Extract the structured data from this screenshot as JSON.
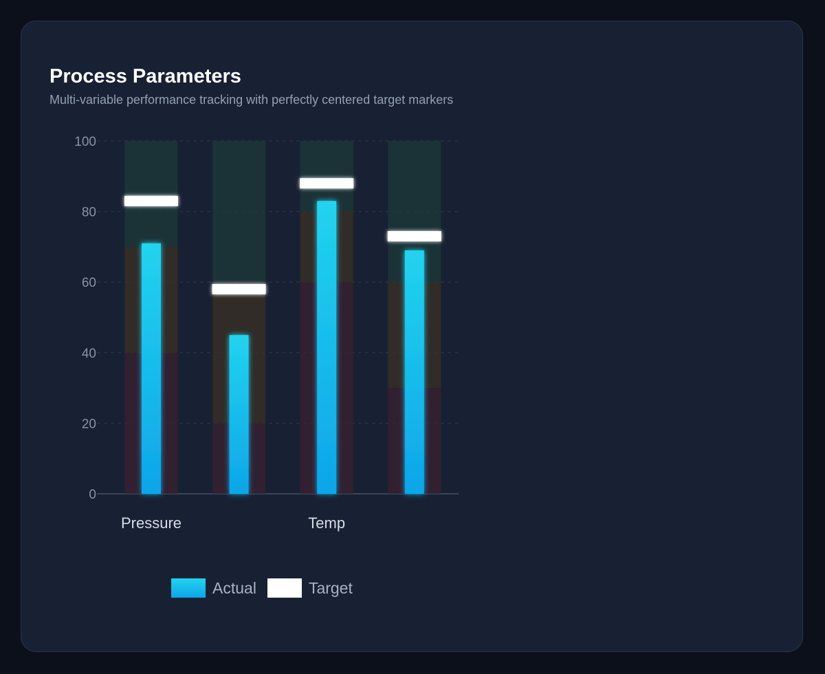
{
  "card": {
    "title": "Process Parameters",
    "subtitle": "Multi-variable performance tracking with perfectly centered target markers"
  },
  "colors": {
    "background": "#0b101a",
    "card": "#182133",
    "actual_top": "#22d3ee",
    "actual_bottom": "#0ea5e9",
    "target": "#ffffff",
    "band_poor": "#3a2030",
    "band_fair": "#3a3024",
    "band_good": "#1c3a3a"
  },
  "chart_data": {
    "type": "bar",
    "subtype": "bullet",
    "categories": [
      "Pressure",
      "",
      "Temp",
      ""
    ],
    "series": [
      {
        "name": "Actual",
        "values": [
          71,
          45,
          83,
          69
        ]
      },
      {
        "name": "Target",
        "values": [
          83,
          58,
          88,
          73
        ]
      }
    ],
    "bands": [
      {
        "poor": 40,
        "fair": 70,
        "good": 100
      },
      {
        "poor": 20,
        "fair": 60,
        "good": 100
      },
      {
        "poor": 60,
        "fair": 80,
        "good": 100
      },
      {
        "poor": 30,
        "fair": 60,
        "good": 100
      }
    ],
    "ylim": [
      0,
      100
    ],
    "yticks": [
      0,
      20,
      40,
      60,
      80,
      100
    ],
    "grid": true,
    "legend_position": "bottom"
  },
  "legend": {
    "actual": "Actual",
    "target": "Target"
  }
}
